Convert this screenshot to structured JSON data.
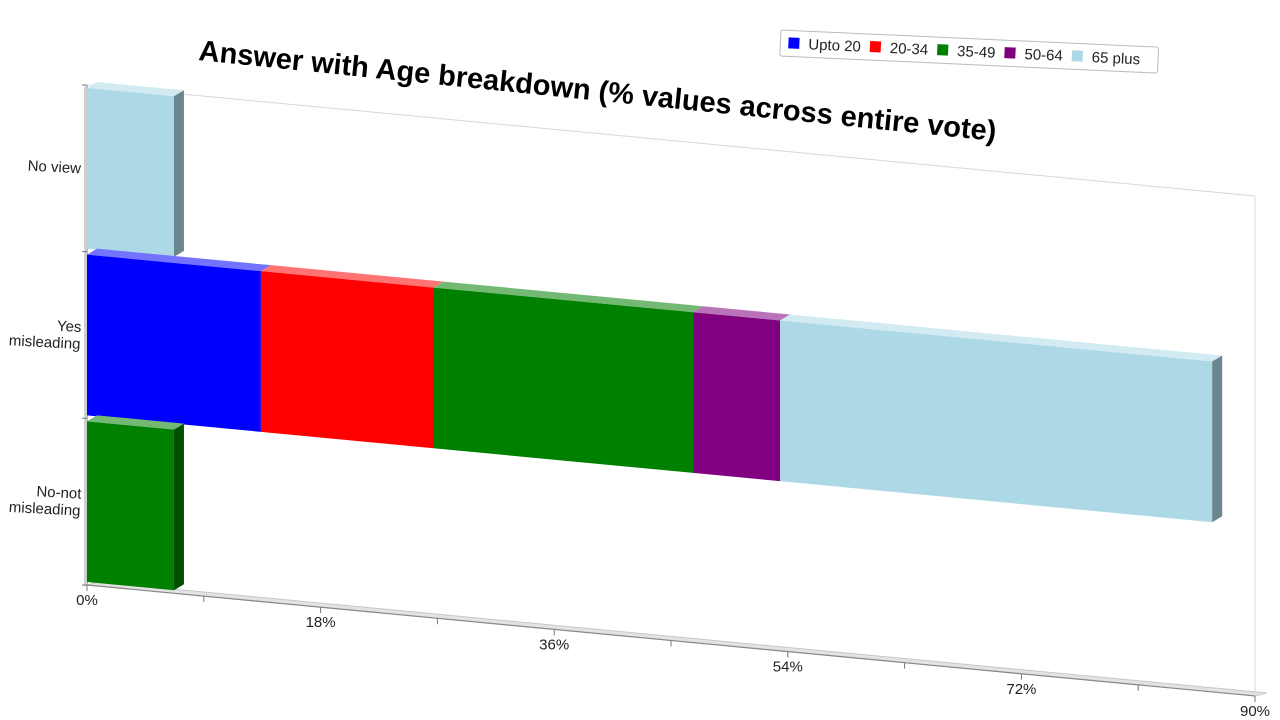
{
  "chart_data": {
    "type": "bar",
    "orientation": "horizontal",
    "stacked": true,
    "title": "Answer with Age breakdown (% values across entire vote)",
    "categories": [
      "No view",
      "Yes misleading",
      "No-not misleading"
    ],
    "category_labels": [
      [
        "No view"
      ],
      [
        "Yes",
        "misleading"
      ],
      [
        "No-not",
        "misleading"
      ]
    ],
    "series": [
      {
        "name": "Upto 20",
        "color": "#0000ff",
        "values": [
          0,
          13.4,
          0
        ]
      },
      {
        "name": "20-34",
        "color": "#ff0000",
        "values": [
          0,
          13.3,
          0
        ]
      },
      {
        "name": "35-49",
        "color": "#008000",
        "values": [
          0,
          20.0,
          6.7
        ]
      },
      {
        "name": "50-64",
        "color": "#800080",
        "values": [
          0,
          6.7,
          0
        ]
      },
      {
        "name": "65 plus",
        "color": "#add8e6",
        "values": [
          6.7,
          33.3,
          0
        ]
      }
    ],
    "xlim": [
      0,
      90
    ],
    "xticks": [
      0,
      18,
      36,
      54,
      72,
      90
    ],
    "xtick_labels": [
      "0%",
      "18%",
      "36%",
      "54%",
      "72%",
      "90%"
    ],
    "legend_position": "top-right",
    "grid": false
  }
}
